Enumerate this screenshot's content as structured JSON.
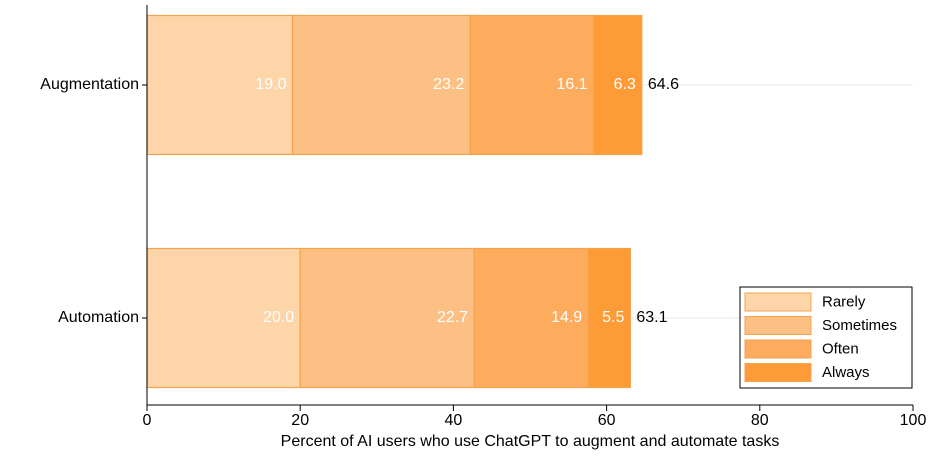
{
  "chart_data": {
    "type": "stacked-barh",
    "xlabel": "Percent of AI users who use ChatGPT to augment and automate tasks",
    "categories": [
      "Augmentation",
      "Automation"
    ],
    "series": [
      {
        "name": "Rarely",
        "color": "#fdd5a9",
        "values": [
          19.0,
          20.0
        ],
        "value_labels": [
          "19.0",
          "20.0"
        ]
      },
      {
        "name": "Sometimes",
        "color": "#fdc084",
        "values": [
          23.2,
          22.7
        ]
      },
      {
        "name": "Often",
        "color": "#fdac5e",
        "values": [
          16.1,
          14.9
        ]
      },
      {
        "name": "Always",
        "color": "#fd9b36",
        "values": [
          6.3,
          5.5
        ]
      }
    ],
    "totals": [
      64.6,
      63.1
    ],
    "xlim": [
      0,
      100
    ],
    "xticks": [
      0,
      20,
      40,
      60,
      80,
      100
    ],
    "grid": true,
    "legend": "lower right"
  }
}
